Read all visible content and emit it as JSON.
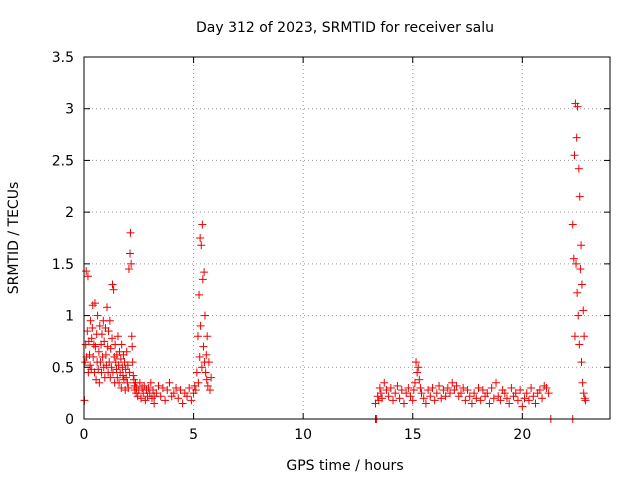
{
  "chart_data": {
    "type": "scatter",
    "title": "Day 312 of 2023, SRMTID for receiver salu",
    "xlabel": "GPS time / hours",
    "ylabel": "SRMTID / TECUs",
    "xlim": [
      0,
      24
    ],
    "ylim": [
      0,
      3.5
    ],
    "xticks": [
      0,
      5,
      10,
      15,
      20
    ],
    "yticks": [
      0,
      0.5,
      1,
      1.5,
      2,
      2.5,
      3,
      3.5
    ],
    "xtick_labels": [
      "0",
      "5",
      "10",
      "15",
      "20"
    ],
    "ytick_labels": [
      "0",
      "0.5",
      "1",
      "1.5",
      "2",
      "2.5",
      "3",
      "3.5"
    ],
    "grid": true,
    "marker": "plus",
    "color": "#ee0000",
    "series": [
      {
        "name": "SRMTID",
        "x": [
          0.02,
          0.05,
          0.08,
          0.1,
          0.12,
          0.15,
          0.18,
          0.2,
          0.22,
          0.25,
          0.28,
          0.3,
          0.33,
          0.35,
          0.38,
          0.4,
          0.42,
          0.45,
          0.48,
          0.5,
          0.52,
          0.55,
          0.58,
          0.6,
          0.62,
          0.65,
          0.68,
          0.7,
          0.72,
          0.75,
          0.78,
          0.8,
          0.82,
          0.85,
          0.88,
          0.9,
          0.92,
          0.95,
          0.98,
          1.0,
          1.02,
          1.05,
          1.08,
          1.1,
          1.12,
          1.15,
          1.18,
          1.2,
          1.22,
          1.25,
          1.28,
          1.3,
          1.32,
          1.35,
          1.38,
          1.4,
          1.42,
          1.45,
          1.48,
          1.5,
          1.52,
          1.55,
          1.58,
          1.6,
          1.62,
          1.65,
          1.68,
          1.7,
          1.72,
          1.75,
          1.78,
          1.8,
          1.82,
          1.85,
          1.88,
          1.9,
          1.92,
          1.95,
          1.98,
          2.0,
          2.02,
          2.05,
          2.08,
          2.1,
          2.12,
          2.15,
          2.18,
          2.2,
          2.22,
          2.25,
          2.28,
          2.3,
          2.32,
          2.35,
          2.38,
          2.4,
          2.45,
          2.5,
          2.55,
          2.6,
          2.65,
          2.7,
          2.75,
          2.8,
          2.85,
          2.9,
          2.95,
          3.0,
          3.05,
          3.1,
          3.15,
          3.2,
          3.3,
          3.4,
          3.5,
          3.6,
          3.7,
          3.8,
          3.9,
          4.0,
          4.1,
          4.2,
          4.3,
          4.4,
          4.5,
          4.6,
          4.7,
          4.8,
          4.9,
          5.0,
          5.05,
          5.1,
          5.15,
          5.2,
          5.22,
          5.25,
          5.28,
          5.3,
          5.32,
          5.35,
          5.38,
          5.4,
          5.42,
          5.45,
          5.48,
          5.5,
          5.52,
          5.55,
          5.58,
          5.6,
          5.62,
          5.65,
          5.7,
          5.75,
          5.8,
          3.2,
          13.3,
          13.35,
          13.4,
          13.45,
          13.5,
          13.55,
          13.6,
          13.7,
          13.8,
          13.9,
          14.0,
          14.1,
          14.2,
          14.3,
          14.4,
          14.5,
          14.6,
          14.7,
          14.8,
          14.9,
          15.0,
          15.05,
          15.1,
          15.15,
          15.2,
          15.25,
          15.3,
          15.35,
          15.4,
          15.5,
          15.6,
          15.7,
          15.8,
          15.9,
          16.0,
          16.1,
          16.2,
          16.3,
          16.4,
          16.5,
          16.6,
          16.7,
          16.8,
          16.9,
          17.0,
          17.1,
          17.2,
          17.3,
          17.4,
          17.5,
          17.6,
          17.7,
          17.8,
          17.9,
          18.0,
          18.1,
          18.2,
          18.3,
          18.4,
          18.5,
          18.6,
          18.7,
          18.8,
          18.9,
          19.0,
          19.1,
          19.2,
          19.3,
          19.4,
          19.5,
          19.6,
          19.7,
          19.8,
          19.9,
          20.0,
          20.1,
          20.2,
          20.3,
          20.4,
          20.5,
          20.6,
          20.7,
          20.8,
          20.9,
          21.0,
          21.1,
          21.2,
          21.3,
          13.3,
          22.3,
          22.35,
          22.38,
          22.4,
          22.42,
          22.45,
          22.48,
          22.5,
          22.52,
          22.55,
          22.58,
          22.6,
          22.62,
          22.65,
          22.68,
          22.7,
          22.72,
          22.75,
          22.78,
          22.8,
          22.82,
          22.85,
          22.88,
          22.3
        ],
        "y": [
          0.18,
          0.55,
          0.72,
          1.43,
          0.6,
          0.85,
          1.38,
          0.45,
          0.75,
          0.62,
          0.52,
          0.95,
          0.48,
          0.78,
          0.88,
          1.1,
          0.6,
          0.72,
          0.45,
          1.12,
          0.7,
          0.38,
          0.82,
          0.55,
          1.0,
          0.48,
          0.65,
          0.35,
          0.9,
          0.55,
          0.72,
          0.45,
          0.82,
          0.6,
          0.95,
          0.5,
          0.75,
          0.4,
          0.88,
          0.62,
          0.52,
          1.08,
          0.7,
          0.45,
          0.85,
          0.55,
          0.95,
          0.4,
          0.68,
          0.5,
          0.78,
          1.3,
          0.45,
          1.25,
          0.6,
          0.35,
          0.72,
          0.55,
          0.48,
          0.62,
          0.4,
          0.8,
          0.52,
          0.35,
          0.65,
          0.45,
          0.58,
          0.3,
          0.72,
          0.5,
          0.42,
          0.62,
          0.38,
          0.55,
          0.28,
          0.48,
          0.4,
          0.65,
          0.35,
          0.52,
          0.3,
          1.45,
          0.45,
          1.6,
          1.8,
          1.5,
          0.8,
          0.7,
          0.55,
          0.42,
          0.38,
          0.32,
          0.28,
          0.35,
          0.25,
          0.3,
          0.22,
          0.28,
          0.35,
          0.2,
          0.3,
          0.25,
          0.32,
          0.18,
          0.28,
          0.22,
          0.3,
          0.25,
          0.35,
          0.2,
          0.28,
          0.15,
          0.25,
          0.32,
          0.22,
          0.3,
          0.18,
          0.28,
          0.35,
          0.22,
          0.25,
          0.3,
          0.2,
          0.28,
          0.15,
          0.25,
          0.22,
          0.3,
          0.18,
          0.25,
          0.32,
          0.28,
          0.45,
          0.8,
          0.35,
          1.2,
          0.6,
          1.75,
          0.9,
          1.68,
          0.5,
          1.88,
          1.35,
          0.7,
          1.42,
          0.55,
          1.0,
          0.45,
          0.62,
          0.38,
          0.8,
          0.32,
          0.55,
          0.28,
          0.4,
          0.22,
          0.15,
          0.0,
          0.22,
          0.18,
          0.3,
          0.25,
          0.2,
          0.35,
          0.28,
          0.22,
          0.3,
          0.18,
          0.25,
          0.32,
          0.2,
          0.28,
          0.15,
          0.25,
          0.3,
          0.22,
          0.18,
          0.28,
          0.35,
          0.55,
          0.45,
          0.5,
          0.38,
          0.3,
          0.25,
          0.2,
          0.15,
          0.28,
          0.22,
          0.3,
          0.18,
          0.25,
          0.32,
          0.2,
          0.28,
          0.22,
          0.3,
          0.25,
          0.35,
          0.28,
          0.32,
          0.22,
          0.25,
          0.3,
          0.18,
          0.28,
          0.22,
          0.15,
          0.25,
          0.2,
          0.3,
          0.18,
          0.28,
          0.22,
          0.25,
          0.15,
          0.3,
          0.2,
          0.35,
          0.22,
          0.18,
          0.28,
          0.25,
          0.2,
          0.15,
          0.3,
          0.22,
          0.25,
          0.18,
          0.28,
          0.12,
          0.2,
          0.25,
          0.18,
          0.3,
          0.22,
          0.15,
          0.25,
          0.28,
          0.2,
          0.32,
          0.3,
          0.25,
          0.0,
          0.0,
          1.88,
          1.55,
          2.55,
          0.8,
          3.05,
          1.5,
          2.72,
          1.22,
          3.02,
          1.0,
          2.42,
          0.72,
          2.15,
          1.45,
          1.68,
          0.55,
          1.3,
          0.35,
          1.05,
          0.25,
          0.8,
          0.2,
          0.18,
          0.0
        ]
      }
    ]
  }
}
